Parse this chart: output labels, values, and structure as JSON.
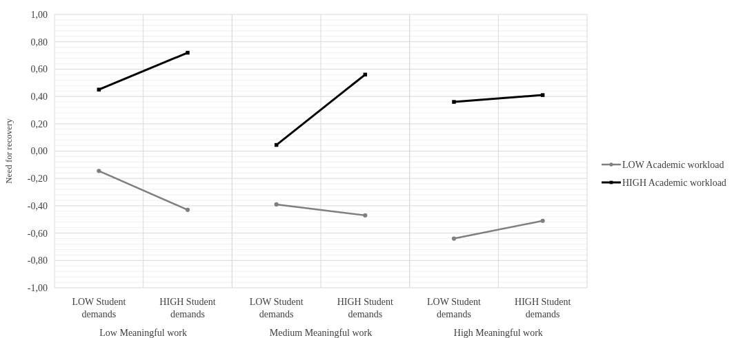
{
  "chart_data": [
    {
      "type": "line",
      "ylabel": "Need for recovery",
      "xlabel": "Low Meaningful work",
      "categories": [
        "LOW Student demands",
        "HIGH Student demands"
      ],
      "ylim": [
        -1,
        1
      ],
      "yticks": [
        {
          "value": -1,
          "label": "-1,00"
        },
        {
          "value": -0.8,
          "label": "-0,80"
        },
        {
          "value": -0.6,
          "label": "-0,60"
        },
        {
          "value": -0.4,
          "label": "-0,40"
        },
        {
          "value": -0.2,
          "label": "-0,20"
        },
        {
          "value": 0,
          "label": "0,00"
        },
        {
          "value": 0.2,
          "label": "0,20"
        },
        {
          "value": 0.4,
          "label": "0,40"
        },
        {
          "value": 0.6,
          "label": "0,60"
        },
        {
          "value": 0.8,
          "label": "0,80"
        },
        {
          "value": 1,
          "label": "1,00"
        }
      ],
      "grid": true,
      "series": [
        {
          "color": "#7f7f7f",
          "marker": "circle",
          "values": [
            -0.145,
            -0.43
          ]
        },
        {
          "color": "#000000",
          "marker": "square",
          "values": [
            0.45,
            0.72
          ]
        }
      ]
    },
    {
      "type": "line",
      "xlabel": "Medium Meaningful work",
      "categories": [
        "LOW Student demands",
        "HIGH Student demands"
      ],
      "ylim": [
        -1,
        1
      ],
      "yticks": [
        -1,
        -0.8,
        -0.6,
        -0.4,
        -0.2,
        0,
        0.2,
        0.4,
        0.6,
        0.8,
        1
      ],
      "grid": true,
      "tick_labels": "x",
      "series": [
        {
          "color": "#7f7f7f",
          "marker": "circle",
          "values": [
            -0.39,
            -0.47
          ]
        },
        {
          "color": "#000000",
          "marker": "square",
          "values": [
            0.045,
            0.56
          ]
        }
      ]
    },
    {
      "type": "line",
      "xlabel": "High Meaningful work",
      "categories": [
        "LOW Student demands",
        "HIGH Student demands"
      ],
      "ylim": [
        -1,
        1
      ],
      "yticks": [
        -1,
        -0.8,
        -0.6,
        -0.4,
        -0.2,
        0,
        0.2,
        0.4,
        0.6,
        0.8,
        1
      ],
      "grid": true,
      "tick_labels": "x",
      "legend": "right",
      "series": [
        {
          "name": "LOW Academic workload",
          "color": "#7f7f7f",
          "marker": "circle",
          "values": [
            -0.64,
            -0.51
          ]
        },
        {
          "name": "HIGH Academic workload",
          "color": "#000000",
          "marker": "square",
          "values": [
            0.36,
            0.41
          ]
        }
      ]
    }
  ]
}
